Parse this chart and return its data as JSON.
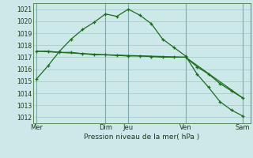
{
  "background_color": "#cce8e8",
  "plot_bg_color": "#cce8e8",
  "grid_color": "#aacccc",
  "line_color": "#1a6e1a",
  "xlabel": "Pression niveau de la mer( hPa )",
  "ylim": [
    1011.5,
    1021.5
  ],
  "yticks": [
    1012,
    1013,
    1014,
    1015,
    1016,
    1017,
    1018,
    1019,
    1020,
    1021
  ],
  "day_labels": [
    "Mer",
    "Dim",
    "Jeu",
    "Ven",
    "Sam"
  ],
  "day_positions": [
    0,
    9,
    12,
    19.5,
    27
  ],
  "xlim": [
    -0.5,
    28
  ],
  "series1_x": [
    0,
    1.5,
    3,
    4.5,
    6,
    7.5,
    9,
    10.5,
    12,
    13.5,
    15,
    16.5,
    18,
    19.5,
    21,
    22.5,
    24,
    25.5,
    27
  ],
  "series1_y": [
    1015.2,
    1016.3,
    1017.5,
    1018.5,
    1019.3,
    1019.9,
    1020.6,
    1020.4,
    1021.0,
    1020.5,
    1019.8,
    1018.5,
    1017.8,
    1017.1,
    1015.6,
    1014.5,
    1013.3,
    1012.6,
    1012.1
  ],
  "series2_x": [
    0,
    1.5,
    3,
    4.5,
    6,
    7.5,
    9,
    10.5,
    12,
    13.5,
    15,
    16.5,
    18,
    19.5,
    21,
    22.5,
    24,
    25.5,
    27
  ],
  "series2_y": [
    1017.5,
    1017.5,
    1017.4,
    1017.4,
    1017.3,
    1017.2,
    1017.2,
    1017.15,
    1017.1,
    1017.1,
    1017.05,
    1017.0,
    1017.0,
    1017.0,
    1016.2,
    1015.6,
    1014.8,
    1014.2,
    1013.6
  ],
  "series3_x": [
    0,
    9,
    19.5,
    27
  ],
  "series3_y": [
    1017.5,
    1017.2,
    1017.0,
    1013.6
  ],
  "figsize": [
    3.2,
    2.0
  ],
  "dpi": 100
}
